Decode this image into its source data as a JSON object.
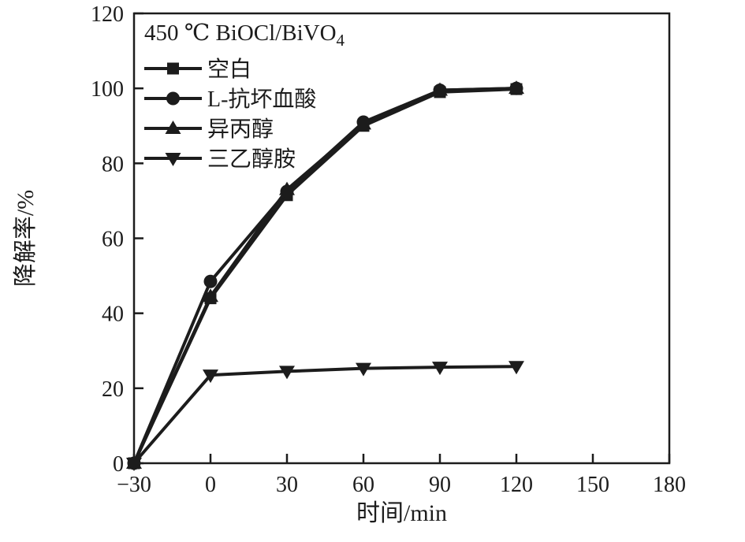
{
  "figure": {
    "background": "#ffffff",
    "ink_color": "#1c1c1c"
  },
  "chart_data": {
    "type": "line",
    "title": "450 ℃ BiOCl/BiVO",
    "title_subscript": "4",
    "xlabel": "时间/min",
    "ylabel": "降解率/%",
    "xlim": [
      -30,
      180
    ],
    "ylim": [
      0,
      120
    ],
    "xticks": [
      -30,
      0,
      30,
      60,
      90,
      120,
      150,
      180
    ],
    "xtick_labels": [
      "−30",
      "0",
      "30",
      "60",
      "90",
      "120",
      "150",
      "180"
    ],
    "yticks": [
      0,
      20,
      40,
      60,
      80,
      100,
      120
    ],
    "ytick_labels": [
      "0",
      "20",
      "40",
      "60",
      "80",
      "100",
      "120"
    ],
    "x": [
      -30,
      0,
      30,
      60,
      90,
      120
    ],
    "series": [
      {
        "name": "空白",
        "marker": "square",
        "values": [
          0,
          44,
          71.5,
          90,
          99,
          99.8
        ]
      },
      {
        "name": "L-抗坏血酸",
        "marker": "circle",
        "values": [
          0,
          48.5,
          72.5,
          91,
          99.5,
          100
        ]
      },
      {
        "name": "异丙醇",
        "marker": "triangle-up",
        "values": [
          0,
          44.5,
          73,
          90.5,
          99.5,
          100
        ]
      },
      {
        "name": "三乙醇胺",
        "marker": "triangle-down",
        "values": [
          0,
          23.5,
          24.5,
          25.3,
          25.6,
          25.8
        ]
      }
    ],
    "legend_position": "top-left",
    "grid": false
  }
}
